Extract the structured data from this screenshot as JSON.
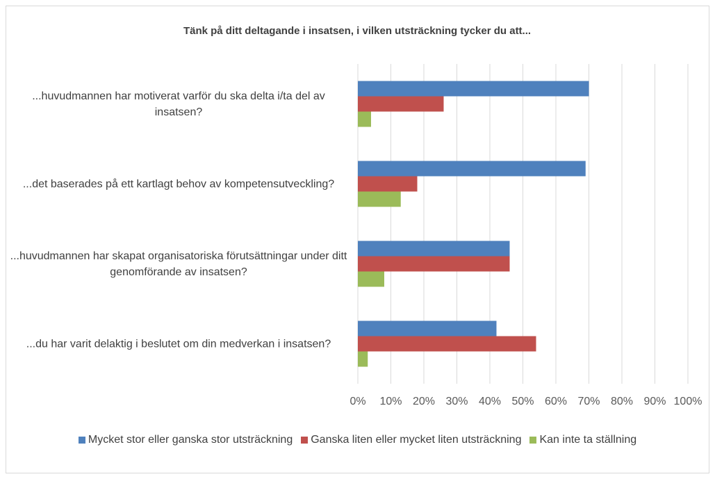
{
  "chart_data": {
    "type": "bar",
    "orientation": "horizontal",
    "title": "Tänk på ditt deltagande i insatsen, i vilken utsträckning tycker du att...",
    "categories": [
      "...huvudmannen har motiverat varför du ska delta i/ta del av insatsen?",
      "...det baserades på ett kartlagt behov av kompetensutveckling?",
      "...huvudmannen har skapat organisatoriska förutsättningar under ditt genomförande av insatsen?",
      "...du har varit delaktig i beslutet om din medverkan i insatsen?"
    ],
    "series": [
      {
        "name": "Mycket stor eller ganska stor utsträckning",
        "color": "#4f81bd",
        "values": [
          70,
          69,
          46,
          42
        ]
      },
      {
        "name": "Ganska liten eller mycket liten utsträckning",
        "color": "#c0504d",
        "values": [
          26,
          18,
          46,
          54
        ]
      },
      {
        "name": "Kan inte ta ställning",
        "color": "#9bbb59",
        "values": [
          4,
          13,
          8,
          3
        ]
      }
    ],
    "xlim": [
      0,
      100
    ],
    "xticks": [
      {
        "value": 0,
        "label": "0%"
      },
      {
        "value": 10,
        "label": "10%"
      },
      {
        "value": 20,
        "label": "20%"
      },
      {
        "value": 30,
        "label": "30%"
      },
      {
        "value": 40,
        "label": "40%"
      },
      {
        "value": 50,
        "label": "50%"
      },
      {
        "value": 60,
        "label": "60%"
      },
      {
        "value": 70,
        "label": "70%"
      },
      {
        "value": 80,
        "label": "80%"
      },
      {
        "value": 90,
        "label": "90%"
      },
      {
        "value": 100,
        "label": "100%"
      }
    ],
    "grid": true,
    "legend": "bottom"
  }
}
